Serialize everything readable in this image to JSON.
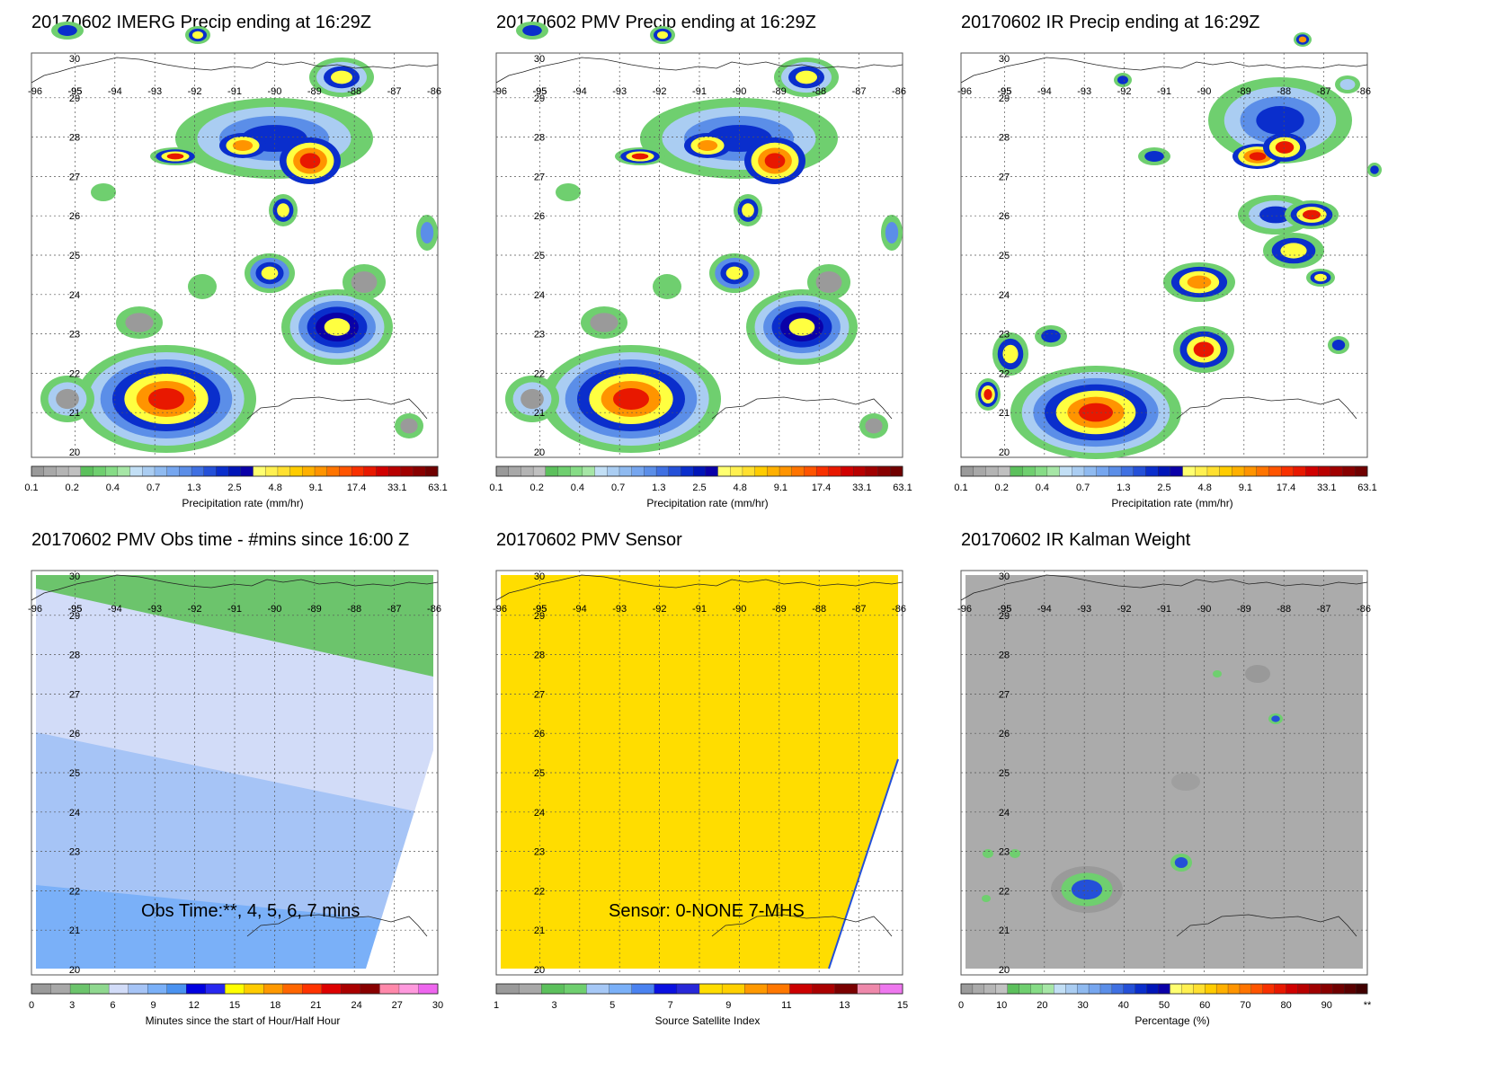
{
  "panels": [
    {
      "id": "imerg",
      "title": "20170602 IMERG Precip ending at 16:29Z",
      "kind": "precip",
      "colorbar": {
        "colors": [
          "#9a9a9a",
          "#a8a8a8",
          "#b4b4b4",
          "#c0c0c0",
          "#5cc05c",
          "#6fcf6f",
          "#86dc86",
          "#a6e6a6",
          "#c2dff5",
          "#aacdf2",
          "#8fbaf0",
          "#76a6ef",
          "#5b8ee8",
          "#3f70e2",
          "#2450d8",
          "#0a2ecc",
          "#0015b8",
          "#0a00a8",
          "#ffff70",
          "#fff050",
          "#ffe030",
          "#ffcc00",
          "#ffb000",
          "#ff9400",
          "#ff7400",
          "#ff5400",
          "#f83000",
          "#e81800",
          "#d00000",
          "#b80000",
          "#a00000",
          "#880000",
          "#700000"
        ],
        "ticks": [
          "0.1",
          "0.2",
          "0.4",
          "0.7",
          "1.3",
          "2.5",
          "4.8",
          "9.1",
          "17.4",
          "33.1",
          "63.1"
        ],
        "label": "Precipitation rate (mm/hr)"
      }
    },
    {
      "id": "pmv",
      "title": "20170602 PMV Precip ending at 16:29Z",
      "kind": "precip",
      "colorbar": {
        "colors": [
          "#9a9a9a",
          "#a8a8a8",
          "#b4b4b4",
          "#c0c0c0",
          "#5cc05c",
          "#6fcf6f",
          "#86dc86",
          "#a6e6a6",
          "#c2dff5",
          "#aacdf2",
          "#8fbaf0",
          "#76a6ef",
          "#5b8ee8",
          "#3f70e2",
          "#2450d8",
          "#0a2ecc",
          "#0015b8",
          "#0a00a8",
          "#ffff70",
          "#fff050",
          "#ffe030",
          "#ffcc00",
          "#ffb000",
          "#ff9400",
          "#ff7400",
          "#ff5400",
          "#f83000",
          "#e81800",
          "#d00000",
          "#b80000",
          "#a00000",
          "#880000",
          "#700000"
        ],
        "ticks": [
          "0.1",
          "0.2",
          "0.4",
          "0.7",
          "1.3",
          "2.5",
          "4.8",
          "9.1",
          "17.4",
          "33.1",
          "63.1"
        ],
        "label": "Precipitation rate (mm/hr)"
      }
    },
    {
      "id": "ir",
      "title": "20170602 IR Precip ending at 16:29Z",
      "kind": "precip",
      "colorbar": {
        "colors": [
          "#9a9a9a",
          "#a8a8a8",
          "#b4b4b4",
          "#c0c0c0",
          "#5cc05c",
          "#6fcf6f",
          "#86dc86",
          "#a6e6a6",
          "#c2dff5",
          "#aacdf2",
          "#8fbaf0",
          "#76a6ef",
          "#5b8ee8",
          "#3f70e2",
          "#2450d8",
          "#0a2ecc",
          "#0015b8",
          "#0a00a8",
          "#ffff70",
          "#fff050",
          "#ffe030",
          "#ffcc00",
          "#ffb000",
          "#ff9400",
          "#ff7400",
          "#ff5400",
          "#f83000",
          "#e81800",
          "#d00000",
          "#b80000",
          "#a00000",
          "#880000",
          "#700000"
        ],
        "ticks": [
          "0.1",
          "0.2",
          "0.4",
          "0.7",
          "1.3",
          "2.5",
          "4.8",
          "9.1",
          "17.4",
          "33.1",
          "63.1"
        ],
        "label": "Precipitation rate (mm/hr)"
      }
    },
    {
      "id": "obstime",
      "title": "20170602 PMV Obs time - #mins since 16:00 Z",
      "kind": "obstime",
      "overlay": "Obs Time:**, 4, 5, 6, 7 mins",
      "colorbar": {
        "colors": [
          "#9a9a9a",
          "#a8a8a8",
          "#6cc46c",
          "#8fd88f",
          "#d2dcf8",
          "#a6c4f6",
          "#7ab0f8",
          "#4a92f0",
          "#0000e0",
          "#2828f0",
          "#ffff00",
          "#ffcc00",
          "#ff9900",
          "#ff6600",
          "#ff3300",
          "#dd0000",
          "#aa0000",
          "#880000",
          "#ff88aa",
          "#ff99dd",
          "#ee66ee"
        ],
        "ticks": [
          "0",
          "3",
          "6",
          "9",
          "12",
          "15",
          "18",
          "21",
          "24",
          "27",
          "30"
        ],
        "label": "Minutes since the start of Hour/Half Hour"
      }
    },
    {
      "id": "sensor",
      "title": "20170602 PMV Sensor",
      "kind": "sensor",
      "overlay": "Sensor:  0-NONE 7-MHS",
      "colorbar": {
        "colors": [
          "#9a9a9a",
          "#a8a8a8",
          "#5cc05c",
          "#6fcf6f",
          "#a6c8f6",
          "#7ab0f8",
          "#4a82f0",
          "#0a10e0",
          "#2828d8",
          "#ffdd00",
          "#ffd000",
          "#ff9900",
          "#ff7700",
          "#cc0000",
          "#aa0000",
          "#7a0000",
          "#ee88aa",
          "#ee77ee"
        ],
        "ticks": [
          "1",
          "3",
          "5",
          "7",
          "9",
          "11",
          "13",
          "15"
        ],
        "label": "Source Satellite Index"
      }
    },
    {
      "id": "kalman",
      "title": "20170602 IR Kalman Weight",
      "kind": "kalman",
      "colorbar": {
        "colors": [
          "#9a9a9a",
          "#aaaaaa",
          "#b6b6b6",
          "#c2c2c2",
          "#5cc05c",
          "#6fcf6f",
          "#86dc86",
          "#a6e6a6",
          "#c2dff5",
          "#aacdf2",
          "#8fbaf0",
          "#76a6ef",
          "#5b8ee8",
          "#3f70e2",
          "#2450d8",
          "#0a2ecc",
          "#0015b8",
          "#0a00a8",
          "#ffff70",
          "#fff050",
          "#ffe030",
          "#ffcc00",
          "#ffb000",
          "#ff9400",
          "#ff7400",
          "#ff5400",
          "#f83000",
          "#e81800",
          "#d00000",
          "#b80000",
          "#a00000",
          "#880000",
          "#700000",
          "#5a0000",
          "#400000"
        ],
        "ticks": [
          "0",
          "10",
          "20",
          "30",
          "40",
          "50",
          "60",
          "70",
          "80",
          "90",
          "**"
        ],
        "label": "Percentage (%)"
      }
    }
  ],
  "map": {
    "lon_labels": [
      "-96",
      "-95",
      "-94",
      "-93",
      "-92",
      "-91",
      "-90",
      "-89",
      "-88",
      "-87",
      "-86"
    ],
    "lat_labels": [
      "20",
      "21",
      "22",
      "23",
      "24",
      "25",
      "26",
      "27",
      "28",
      "29",
      "30"
    ],
    "lat_extra_label": "-95"
  },
  "colors": {
    "grid": "#555555",
    "coast": "#222222",
    "panel_border": "#555555",
    "obstime_green": "#6cc46c",
    "obstime_lightblue": "#d2dcf8",
    "obstime_midblue": "#a6c4f6",
    "obstime_blue": "#7ab0f8",
    "sensor_yellow": "#ffdd00",
    "kalman_gray": "#ababab"
  }
}
